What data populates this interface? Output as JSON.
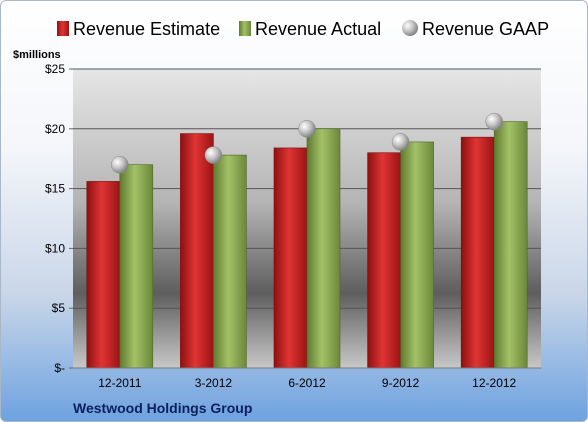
{
  "chart_data": {
    "type": "bar",
    "title": "",
    "ylabel": "$millions",
    "categories": [
      "12-2011",
      "3-2012",
      "6-2012",
      "9-2012",
      "12-2012"
    ],
    "series": [
      {
        "name": "Revenue Estimate",
        "kind": "bar",
        "color": "#cc2020",
        "values": [
          15.6,
          19.6,
          18.4,
          18.0,
          19.3
        ]
      },
      {
        "name": "Revenue Actual",
        "kind": "bar",
        "color": "#8aaa50",
        "values": [
          17.0,
          17.8,
          20.0,
          18.9,
          20.6
        ]
      },
      {
        "name": "Revenue GAAP",
        "kind": "marker",
        "color": "#b8b8b8",
        "values": [
          17.0,
          17.8,
          20.0,
          18.9,
          20.6
        ]
      }
    ],
    "ylim": [
      0,
      25
    ],
    "yticks": [
      0,
      5,
      10,
      15,
      20,
      25
    ],
    "ytick_labels": [
      "$-",
      "$5",
      "$10",
      "$15",
      "$20",
      "$25"
    ],
    "grid": true,
    "legend_position": "top"
  },
  "company_name": "Westwood Holdings Group"
}
